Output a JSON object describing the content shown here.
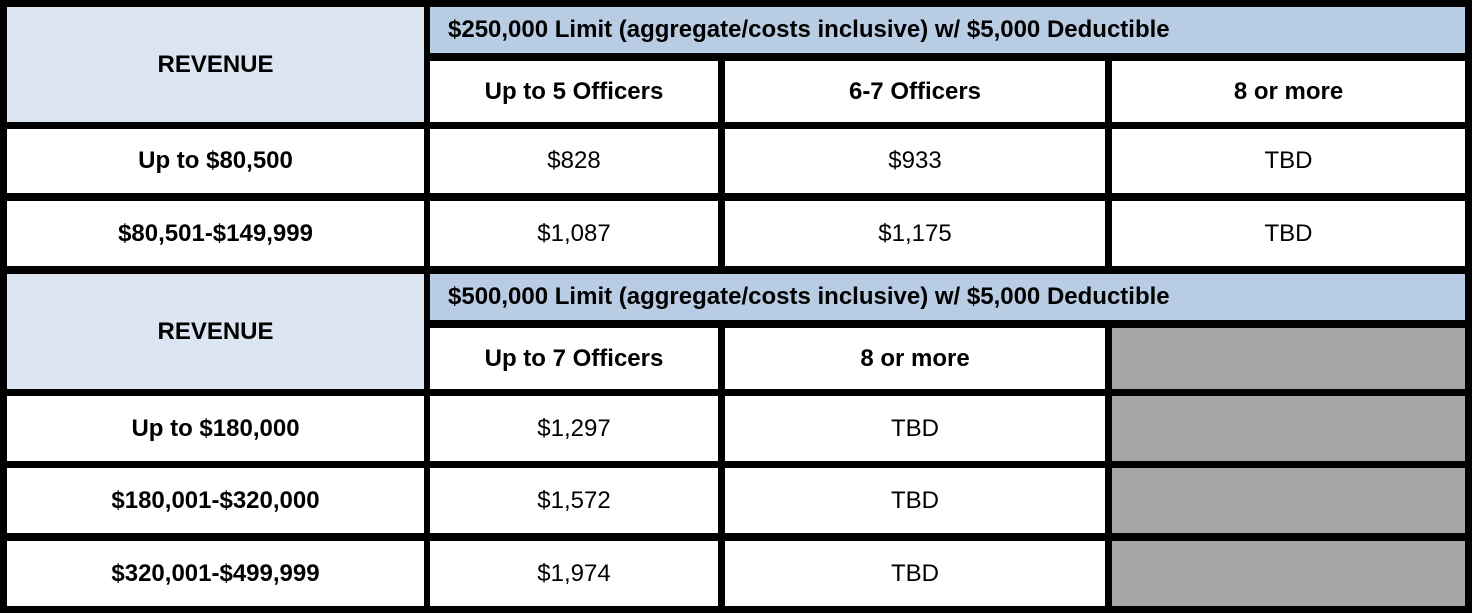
{
  "table1": {
    "revenue_label": "REVENUE",
    "header": "$250,000  Limit (aggregate/costs inclusive) w/ $5,000 Deductible",
    "columns": [
      "Up to 5 Officers",
      "6-7 Officers",
      "8 or more"
    ],
    "rows": [
      {
        "revenue": "Up to $80,500",
        "values": [
          "$828",
          "$933",
          "TBD"
        ]
      },
      {
        "revenue": "$80,501-$149,999",
        "values": [
          "$1,087",
          "$1,175",
          "TBD"
        ]
      }
    ]
  },
  "table2": {
    "revenue_label": "REVENUE",
    "header": "$500,000  Limit (aggregate/costs inclusive) w/ $5,000 Deductible",
    "columns": [
      "Up to 7 Officers",
      "8 or more"
    ],
    "rows": [
      {
        "revenue": "Up to $180,000",
        "values": [
          "$1,297",
          "TBD"
        ]
      },
      {
        "revenue": "$180,001-$320,000",
        "values": [
          "$1,572",
          "TBD"
        ]
      },
      {
        "revenue": "$320,001-$499,999",
        "values": [
          "$1,974",
          "TBD"
        ]
      }
    ]
  }
}
